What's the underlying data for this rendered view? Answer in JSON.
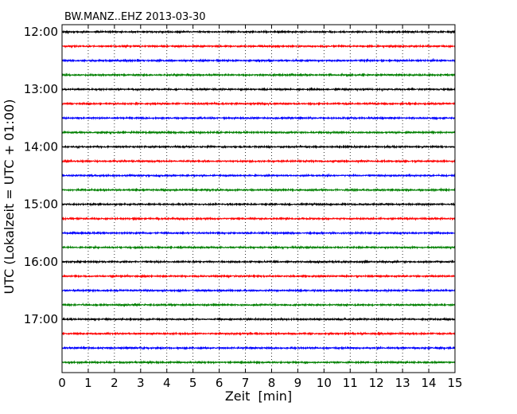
{
  "chart_data": {
    "type": "line",
    "title": "BW.MANZ..EHZ 2013-03-30",
    "xlabel": "Zeit  [min]",
    "ylabel": "UTC (Lokalzeit = UTC + 01:00)",
    "xlim": [
      0,
      15
    ],
    "x_ticks": [
      "0",
      "1",
      "2",
      "3",
      "4",
      "5",
      "6",
      "7",
      "8",
      "9",
      "10",
      "11",
      "12",
      "13",
      "14",
      "15"
    ],
    "y_ticks": [
      "12:00",
      "13:00",
      "14:00",
      "15:00",
      "16:00",
      "17:00"
    ],
    "grid_x": true,
    "grid_style": "dotted",
    "trace_interval_min": 15,
    "trace_start": "12:00",
    "trace_count": 24,
    "trace_colors": [
      "#000000",
      "#ff0000",
      "#0000ff",
      "#008000"
    ]
  }
}
